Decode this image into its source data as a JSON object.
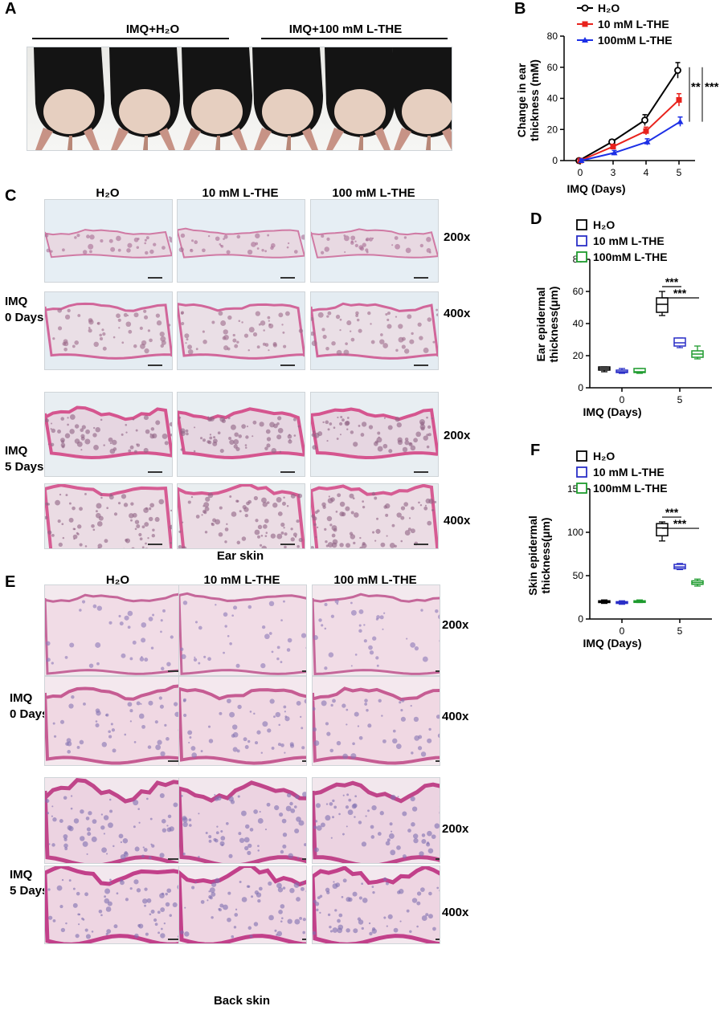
{
  "panel_a": {
    "letter": "A",
    "group1": "IMQ+H₂O",
    "group2": "IMQ+100 mM L-THE"
  },
  "panel_c": {
    "letter": "C",
    "columns": [
      "H₂O",
      "10 mM L-THE",
      "100 mM L-THE"
    ],
    "row_groups": [
      "IMQ\n0 Days",
      "IMQ\n5 Days"
    ],
    "mags": [
      "200x",
      "400x",
      "200x",
      "400x"
    ],
    "caption": "Ear skin"
  },
  "panel_e": {
    "letter": "E",
    "columns": [
      "H₂O",
      "10 mM L-THE",
      "100 mM L-THE"
    ],
    "row_groups": [
      "IMQ\n0 Days",
      "IMQ\n5 Days"
    ],
    "mags": [
      "200x",
      "400x",
      "200x",
      "400x"
    ],
    "caption": "Back skin"
  },
  "chart_data": [
    {
      "id": "B",
      "type": "line",
      "letter": "B",
      "x": [
        0,
        3,
        4,
        5
      ],
      "series": [
        {
          "name": "H₂O",
          "values": [
            0,
            12,
            26,
            58
          ],
          "errors": [
            1,
            1.5,
            3.5,
            5
          ],
          "color": "#000000",
          "marker": "circle-open"
        },
        {
          "name": "10 mM L-THE",
          "values": [
            0,
            9,
            19,
            39
          ],
          "errors": [
            1,
            1.5,
            2.5,
            4
          ],
          "color": "#e8221c",
          "marker": "square"
        },
        {
          "name": "100mM L-THE",
          "values": [
            0,
            5,
            12,
            25
          ],
          "errors": [
            1,
            1.5,
            2,
            3
          ],
          "color": "#1c2fe6",
          "marker": "triangle"
        }
      ],
      "xlabel": "IMQ (Days)",
      "ylabel": "Change in ear thickness (mM)",
      "ylim": [
        0,
        80
      ],
      "yticks": [
        0,
        20,
        40,
        60,
        80
      ],
      "annotations": [
        "**",
        "***"
      ]
    },
    {
      "id": "D",
      "type": "box",
      "letter": "D",
      "categories": [
        "0",
        "5"
      ],
      "series": [
        {
          "name": "H₂O",
          "color": "#000000",
          "boxes": [
            {
              "min": 10,
              "q1": 11,
              "median": 12,
              "q3": 13,
              "max": 13
            },
            {
              "min": 45,
              "q1": 47,
              "median": 52,
              "q3": 56,
              "max": 60
            }
          ]
        },
        {
          "name": "10 mM L-THE",
          "color": "#2a2fc7",
          "boxes": [
            {
              "min": 9,
              "q1": 9.5,
              "median": 10,
              "q3": 11,
              "max": 12
            },
            {
              "min": 25,
              "q1": 26,
              "median": 28,
              "q3": 31,
              "max": 31
            }
          ]
        },
        {
          "name": "100mM L-THE",
          "color": "#1e9b2e",
          "boxes": [
            {
              "min": 9,
              "q1": 9.5,
              "median": 10,
              "q3": 12,
              "max": 12
            },
            {
              "min": 18,
              "q1": 19,
              "median": 21,
              "q3": 23,
              "max": 26
            }
          ]
        }
      ],
      "xlabel": "IMQ (Days)",
      "ylabel": "Ear epidermal thickness(μm)",
      "ylim": [
        0,
        80
      ],
      "yticks": [
        0,
        20,
        40,
        60,
        80
      ],
      "annotations": [
        "***",
        "***"
      ]
    },
    {
      "id": "F",
      "type": "box",
      "letter": "F",
      "categories": [
        "0",
        "5"
      ],
      "series": [
        {
          "name": "H₂O",
          "color": "#000000",
          "boxes": [
            {
              "min": 18,
              "q1": 19,
              "median": 20,
              "q3": 21,
              "max": 22
            },
            {
              "min": 90,
              "q1": 96,
              "median": 105,
              "q3": 110,
              "max": 112
            }
          ]
        },
        {
          "name": "10 mM L-THE",
          "color": "#2a2fc7",
          "boxes": [
            {
              "min": 17,
              "q1": 18,
              "median": 19,
              "q3": 20,
              "max": 21
            },
            {
              "min": 57,
              "q1": 58,
              "median": 60,
              "q3": 63,
              "max": 64
            }
          ]
        },
        {
          "name": "100mM L-THE",
          "color": "#1e9b2e",
          "boxes": [
            {
              "min": 19,
              "q1": 19.5,
              "median": 20,
              "q3": 21,
              "max": 22
            },
            {
              "min": 38,
              "q1": 40,
              "median": 42,
              "q3": 44,
              "max": 46
            }
          ]
        }
      ],
      "xlabel": "IMQ (Days)",
      "ylabel": "Skin epidermal thickness(μm)",
      "ylim": [
        0,
        150
      ],
      "yticks": [
        0,
        50,
        100,
        150
      ],
      "annotations": [
        "***",
        "***"
      ]
    }
  ]
}
